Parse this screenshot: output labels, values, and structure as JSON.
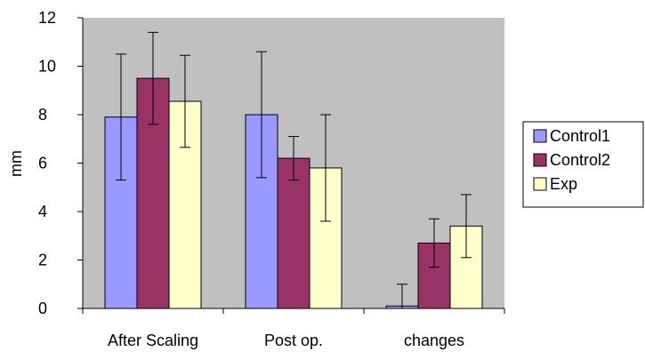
{
  "chart_data": {
    "type": "bar",
    "title": "",
    "xlabel": "",
    "ylabel": "mm",
    "ylim": [
      0,
      12
    ],
    "yticks": [
      0,
      2,
      4,
      6,
      8,
      10,
      12
    ],
    "grid": false,
    "legend_position": "right",
    "categories": [
      "After Scaling",
      "Post op.",
      "changes"
    ],
    "series": [
      {
        "name": "Control1",
        "color": "#9999ff",
        "values": [
          7.9,
          8.0,
          0.1
        ],
        "errors": [
          2.6,
          2.6,
          0.9
        ]
      },
      {
        "name": "Control2",
        "color": "#993366",
        "values": [
          9.5,
          6.2,
          2.7
        ],
        "errors": [
          1.9,
          0.9,
          1.0
        ]
      },
      {
        "name": "Exp",
        "color": "#ffffcc",
        "values": [
          8.55,
          5.8,
          3.4
        ],
        "errors": [
          1.9,
          2.2,
          1.3
        ]
      }
    ],
    "plot_background": "#c0c0c0"
  }
}
